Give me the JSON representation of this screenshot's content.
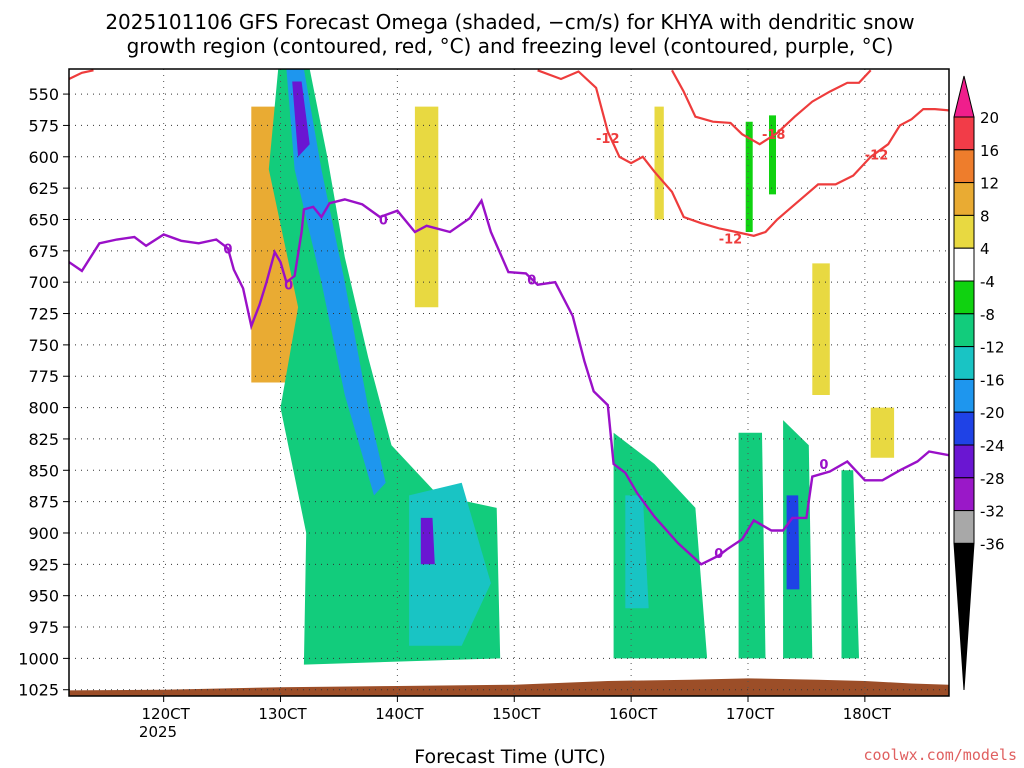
{
  "chart_data": {
    "type": "heatmap",
    "title_line1": "2025101106 GFS Forecast Omega (shaded, −cm/s) for KHYA with dendritic snow",
    "title_line2": "growth region (contoured, red, °C) and freezing level (contoured, purple, °C)",
    "xlabel": "Forecast Time (UTC)",
    "credit": "coolwx.com/models",
    "year_label": "2025",
    "y_axis": {
      "units": "hPa",
      "range": [
        530,
        1030
      ],
      "ticks": [
        550,
        575,
        600,
        625,
        650,
        675,
        700,
        725,
        750,
        775,
        800,
        825,
        850,
        875,
        900,
        925,
        950,
        975,
        1000,
        1025
      ]
    },
    "x_axis": {
      "units": "day of month",
      "range": [
        11.19,
        18.72
      ],
      "ticks": [
        {
          "v": 12,
          "label": "120CT"
        },
        {
          "v": 13,
          "label": "130CT"
        },
        {
          "v": 14,
          "label": "140CT"
        },
        {
          "v": 15,
          "label": "150CT"
        },
        {
          "v": 16,
          "label": "160CT"
        },
        {
          "v": 17,
          "label": "170CT"
        },
        {
          "v": 18,
          "label": "180CT"
        }
      ]
    },
    "colorbar": {
      "ticks": [
        20,
        16,
        12,
        8,
        4,
        -4,
        -8,
        -12,
        -16,
        -20,
        -24,
        -28,
        -32,
        -36
      ],
      "bands": [
        {
          "range": [
            16,
            20
          ],
          "color": "#f23c48"
        },
        {
          "range": [
            12,
            16
          ],
          "color": "#ee7d2c"
        },
        {
          "range": [
            8,
            12
          ],
          "color": "#e9ab33"
        },
        {
          "range": [
            4,
            8
          ],
          "color": "#e8d941"
        },
        {
          "range": [
            -4,
            4
          ],
          "color": "#ffffff"
        },
        {
          "range": [
            -8,
            -4
          ],
          "color": "#10d210"
        },
        {
          "range": [
            -12,
            -8
          ],
          "color": "#12cc7c"
        },
        {
          "range": [
            -16,
            -12
          ],
          "color": "#19c4c4"
        },
        {
          "range": [
            -20,
            -16
          ],
          "color": "#1e96ee"
        },
        {
          "range": [
            -24,
            -20
          ],
          "color": "#1f42e6"
        },
        {
          "range": [
            -28,
            -24
          ],
          "color": "#6a16d2"
        },
        {
          "range": [
            -32,
            -28
          ],
          "color": "#9a18c8"
        },
        {
          "range": [
            -36,
            -32
          ],
          "color": "#a8a8a8"
        }
      ],
      "top_arrow_color": "#f01e8c",
      "bottom_arrow_color": "#000000"
    },
    "colors": {
      "ground": "#9c4e28",
      "freezing_level": "#9a10c8",
      "dgz": "#ee3c3c"
    },
    "freezing_level": [
      [
        11.19,
        684
      ],
      [
        11.3,
        691
      ],
      [
        11.45,
        669
      ],
      [
        11.6,
        666
      ],
      [
        11.75,
        664
      ],
      [
        11.85,
        671
      ],
      [
        12.0,
        662
      ],
      [
        12.15,
        667
      ],
      [
        12.3,
        669
      ],
      [
        12.45,
        666
      ],
      [
        12.55,
        673
      ],
      [
        12.6,
        690
      ],
      [
        12.68,
        705
      ],
      [
        12.75,
        735
      ],
      [
        12.82,
        718
      ],
      [
        12.88,
        700
      ],
      [
        12.95,
        676
      ],
      [
        13.0,
        684
      ],
      [
        13.05,
        700
      ],
      [
        13.12,
        695
      ],
      [
        13.18,
        660
      ],
      [
        13.2,
        642
      ],
      [
        13.28,
        640
      ],
      [
        13.35,
        648
      ],
      [
        13.42,
        637
      ],
      [
        13.55,
        634
      ],
      [
        13.7,
        638
      ],
      [
        13.85,
        648
      ],
      [
        14.0,
        643
      ],
      [
        14.15,
        660
      ],
      [
        14.25,
        655
      ],
      [
        14.45,
        660
      ],
      [
        14.62,
        649
      ],
      [
        14.72,
        635
      ],
      [
        14.8,
        660
      ],
      [
        14.95,
        692
      ],
      [
        15.1,
        693
      ],
      [
        15.2,
        702
      ],
      [
        15.35,
        700
      ],
      [
        15.5,
        727
      ],
      [
        15.6,
        763
      ],
      [
        15.68,
        787
      ],
      [
        15.8,
        798
      ],
      [
        15.85,
        845
      ],
      [
        15.95,
        852
      ],
      [
        16.05,
        868
      ],
      [
        16.2,
        887
      ],
      [
        16.4,
        908
      ],
      [
        16.6,
        925
      ],
      [
        16.75,
        918
      ],
      [
        16.82,
        913
      ],
      [
        16.95,
        905
      ],
      [
        17.05,
        890
      ],
      [
        17.2,
        898
      ],
      [
        17.3,
        898
      ],
      [
        17.38,
        888
      ],
      [
        17.5,
        888
      ],
      [
        17.55,
        855
      ],
      [
        17.7,
        851
      ],
      [
        17.85,
        843
      ],
      [
        18.0,
        858
      ],
      [
        18.15,
        858
      ],
      [
        18.3,
        850
      ],
      [
        18.45,
        843
      ],
      [
        18.55,
        835
      ],
      [
        18.72,
        838
      ]
    ],
    "dgz_contours": [
      {
        "label": "-12",
        "points": [
          [
            11.19,
            538
          ],
          [
            11.3,
            533
          ],
          [
            11.4,
            531
          ]
        ]
      },
      {
        "label": "-12",
        "points": [
          [
            15.2,
            531
          ],
          [
            15.4,
            538
          ],
          [
            15.55,
            532
          ],
          [
            15.7,
            545
          ],
          [
            15.8,
            580
          ],
          [
            15.9,
            600
          ],
          [
            16.0,
            605
          ],
          [
            16.1,
            600
          ],
          [
            16.2,
            612
          ],
          [
            16.35,
            628
          ],
          [
            16.45,
            648
          ],
          [
            16.6,
            653
          ],
          [
            16.75,
            657
          ],
          [
            16.9,
            660
          ],
          [
            17.05,
            663
          ],
          [
            17.15,
            660
          ],
          [
            17.25,
            650
          ],
          [
            17.35,
            642
          ],
          [
            17.5,
            630
          ],
          [
            17.6,
            622
          ],
          [
            17.75,
            622
          ],
          [
            17.9,
            615
          ],
          [
            18.05,
            600
          ],
          [
            18.2,
            590
          ],
          [
            18.3,
            575
          ],
          [
            18.4,
            570
          ],
          [
            18.5,
            562
          ],
          [
            18.6,
            562
          ],
          [
            18.72,
            563
          ]
        ]
      },
      {
        "label": "-18",
        "points": [
          [
            16.35,
            531
          ],
          [
            16.45,
            548
          ],
          [
            16.55,
            568
          ],
          [
            16.7,
            572
          ],
          [
            16.85,
            573
          ],
          [
            16.95,
            582
          ],
          [
            17.1,
            590
          ],
          [
            17.25,
            581
          ],
          [
            17.4,
            568
          ],
          [
            17.55,
            556
          ],
          [
            17.7,
            548
          ],
          [
            17.85,
            541
          ],
          [
            17.95,
            541
          ],
          [
            18.05,
            531
          ]
        ]
      }
    ],
    "omega_features": [
      {
        "name": "diagonal upward-motion band",
        "polygon": [
          [
            12.98,
            530
          ],
          [
            13.25,
            530
          ],
          [
            13.4,
            600
          ],
          [
            13.55,
            680
          ],
          [
            13.75,
            760
          ],
          [
            13.95,
            830
          ],
          [
            14.35,
            870
          ],
          [
            14.85,
            880
          ],
          [
            14.88,
            1000
          ],
          [
            13.2,
            1005
          ],
          [
            13.22,
            900
          ],
          [
            13.0,
            800
          ],
          [
            13.15,
            720
          ],
          [
            12.9,
            610
          ]
        ],
        "level": -12
      },
      {
        "name": "diagonal core",
        "polygon": [
          [
            13.05,
            530
          ],
          [
            13.2,
            530
          ],
          [
            13.35,
            610
          ],
          [
            13.55,
            700
          ],
          [
            13.75,
            800
          ],
          [
            13.9,
            860
          ],
          [
            13.8,
            870
          ],
          [
            13.55,
            790
          ],
          [
            13.35,
            700
          ],
          [
            13.12,
            610
          ]
        ],
        "level": -20
      },
      {
        "name": "diagonal max",
        "polygon": [
          [
            13.1,
            540
          ],
          [
            13.18,
            540
          ],
          [
            13.25,
            590
          ],
          [
            13.15,
            600
          ]
        ],
        "level": -26
      },
      {
        "name": "low-level block 14-15",
        "polygon": [
          [
            14.1,
            870
          ],
          [
            14.55,
            860
          ],
          [
            14.8,
            940
          ],
          [
            14.55,
            990
          ],
          [
            14.1,
            990
          ]
        ],
        "level": -14
      },
      {
        "name": "max 14.2",
        "polygon": [
          [
            14.2,
            888
          ],
          [
            14.3,
            888
          ],
          [
            14.32,
            925
          ],
          [
            14.2,
            925
          ]
        ],
        "level": -26
      },
      {
        "name": "block 16",
        "polygon": [
          [
            15.85,
            820
          ],
          [
            16.2,
            845
          ],
          [
            16.55,
            880
          ],
          [
            16.65,
            1000
          ],
          [
            16.0,
            1000
          ],
          [
            15.85,
            1000
          ]
        ],
        "level": -10
      },
      {
        "name": "block 16 core",
        "polygon": [
          [
            15.95,
            870
          ],
          [
            16.1,
            870
          ],
          [
            16.15,
            960
          ],
          [
            15.95,
            960
          ]
        ],
        "level": -14
      },
      {
        "name": "block 17",
        "polygon": [
          [
            16.92,
            820
          ],
          [
            17.12,
            820
          ],
          [
            17.15,
            1000
          ],
          [
            16.92,
            1000
          ]
        ],
        "level": -10
      },
      {
        "name": "block 17.3",
        "polygon": [
          [
            17.3,
            810
          ],
          [
            17.52,
            830
          ],
          [
            17.55,
            1000
          ],
          [
            17.3,
            1000
          ]
        ],
        "level": -12
      },
      {
        "name": "max 17.3",
        "polygon": [
          [
            17.33,
            870
          ],
          [
            17.43,
            870
          ],
          [
            17.44,
            945
          ],
          [
            17.33,
            945
          ]
        ],
        "level": -24
      },
      {
        "name": "block 17.8",
        "polygon": [
          [
            17.8,
            850
          ],
          [
            17.9,
            850
          ],
          [
            17.95,
            1000
          ],
          [
            17.8,
            1000
          ]
        ],
        "level": -10
      },
      {
        "name": "block 17.1 upper",
        "polygon": [
          [
            16.98,
            572
          ],
          [
            17.04,
            572
          ],
          [
            17.04,
            660
          ],
          [
            16.98,
            660
          ]
        ],
        "level": -6
      },
      {
        "name": "block 17.2 upper",
        "polygon": [
          [
            17.18,
            567
          ],
          [
            17.24,
            567
          ],
          [
            17.24,
            630
          ],
          [
            17.18,
            630
          ]
        ],
        "level": -6
      },
      {
        "name": "yellow 14.2 column",
        "polygon": [
          [
            14.15,
            560
          ],
          [
            14.35,
            560
          ],
          [
            14.35,
            720
          ],
          [
            14.15,
            720
          ]
        ],
        "level": 5
      },
      {
        "name": "yellow 16.25 column",
        "polygon": [
          [
            16.2,
            560
          ],
          [
            16.28,
            560
          ],
          [
            16.28,
            650
          ],
          [
            16.2,
            650
          ]
        ],
        "level": 5
      },
      {
        "name": "yellow 17.6 blob",
        "polygon": [
          [
            17.55,
            685
          ],
          [
            17.7,
            685
          ],
          [
            17.7,
            790
          ],
          [
            17.55,
            790
          ]
        ],
        "level": 5
      },
      {
        "name": "yellow 18.1 blob",
        "polygon": [
          [
            18.05,
            800
          ],
          [
            18.25,
            800
          ],
          [
            18.25,
            840
          ],
          [
            18.05,
            840
          ]
        ],
        "level": 5
      },
      {
        "name": "orange 12.9 column",
        "polygon": [
          [
            12.75,
            560
          ],
          [
            13.2,
            560
          ],
          [
            13.2,
            780
          ],
          [
            12.75,
            780
          ]
        ],
        "level": 10
      }
    ]
  }
}
